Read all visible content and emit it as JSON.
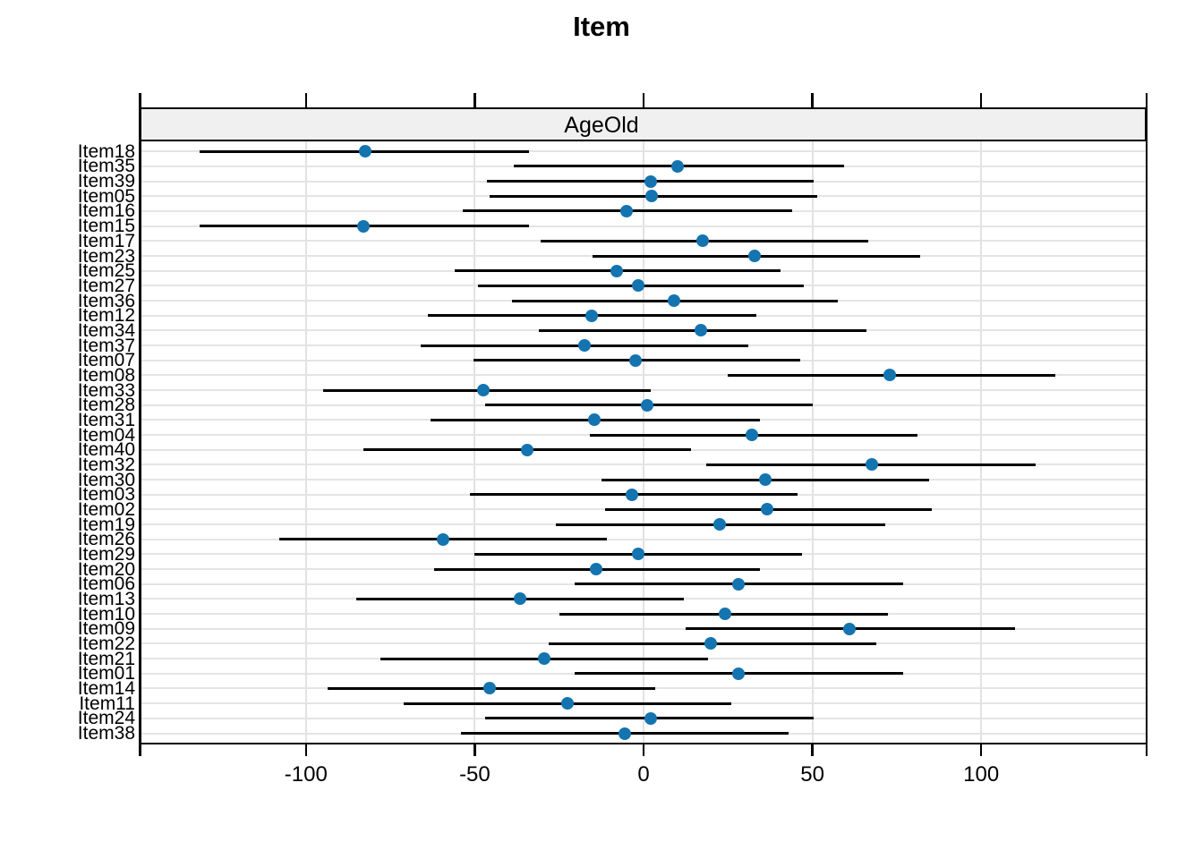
{
  "title": "Item",
  "panel": {
    "strip_label": "AgeOld"
  },
  "colors": {
    "dot": "#1474b0",
    "interval_line": "#000000",
    "grid": "#e4e4e4",
    "strip_fill": "#f0f0f0",
    "frame": "#000000",
    "background": "#ffffff"
  },
  "chart_data": {
    "type": "scatter",
    "subtype": "dotplot-with-error-bars",
    "title": "Item",
    "panel_label": "AgeOld",
    "xlabel": "",
    "ylabel": "",
    "xlim": [
      -149,
      149
    ],
    "x_ticks": [
      -100,
      -50,
      0,
      50,
      100
    ],
    "x_tick_labels": [
      "-100",
      "-50",
      "0",
      "50",
      "100"
    ],
    "grid": true,
    "legend": "none",
    "items": [
      {
        "label": "Item18",
        "estimate": -82.5,
        "lower": -131.5,
        "upper": -34
      },
      {
        "label": "Item35",
        "estimate": 10,
        "lower": -38.5,
        "upper": 59.5
      },
      {
        "label": "Item39",
        "estimate": 2,
        "lower": -46.5,
        "upper": 50.5
      },
      {
        "label": "Item05",
        "estimate": 2.5,
        "lower": -45.5,
        "upper": 51.5
      },
      {
        "label": "Item16",
        "estimate": -5,
        "lower": -53.5,
        "upper": 44
      },
      {
        "label": "Item15",
        "estimate": -83,
        "lower": -131.5,
        "upper": -34
      },
      {
        "label": "Item17",
        "estimate": 17.5,
        "lower": -30.5,
        "upper": 66.5
      },
      {
        "label": "Item23",
        "estimate": 33,
        "lower": -15,
        "upper": 82
      },
      {
        "label": "Item25",
        "estimate": -8,
        "lower": -56,
        "upper": 40.5
      },
      {
        "label": "Item27",
        "estimate": -1.5,
        "lower": -49,
        "upper": 47.5
      },
      {
        "label": "Item36",
        "estimate": 9,
        "lower": -39,
        "upper": 57.5
      },
      {
        "label": "Item12",
        "estimate": -15.5,
        "lower": -64,
        "upper": 33.5
      },
      {
        "label": "Item34",
        "estimate": 17,
        "lower": -31,
        "upper": 66
      },
      {
        "label": "Item37",
        "estimate": -17.5,
        "lower": -66,
        "upper": 31
      },
      {
        "label": "Item07",
        "estimate": -2.5,
        "lower": -50.5,
        "upper": 46.5
      },
      {
        "label": "Item08",
        "estimate": 73,
        "lower": 25,
        "upper": 122
      },
      {
        "label": "Item33",
        "estimate": -47.5,
        "lower": -95,
        "upper": 2
      },
      {
        "label": "Item28",
        "estimate": 1,
        "lower": -47,
        "upper": 50
      },
      {
        "label": "Item31",
        "estimate": -14.5,
        "lower": -63,
        "upper": 34.5
      },
      {
        "label": "Item04",
        "estimate": 32,
        "lower": -16,
        "upper": 81
      },
      {
        "label": "Item40",
        "estimate": -34.5,
        "lower": -83,
        "upper": 14
      },
      {
        "label": "Item32",
        "estimate": 67.5,
        "lower": 18.5,
        "upper": 116
      },
      {
        "label": "Item30",
        "estimate": 36,
        "lower": -12.5,
        "upper": 84.5
      },
      {
        "label": "Item03",
        "estimate": -3.5,
        "lower": -51.5,
        "upper": 45.5
      },
      {
        "label": "Item02",
        "estimate": 36.5,
        "lower": -11.5,
        "upper": 85.5
      },
      {
        "label": "Item19",
        "estimate": 22.5,
        "lower": -26,
        "upper": 71.5
      },
      {
        "label": "Item26",
        "estimate": -59.5,
        "lower": -108,
        "upper": -11
      },
      {
        "label": "Item29",
        "estimate": -1.5,
        "lower": -50,
        "upper": 47
      },
      {
        "label": "Item20",
        "estimate": -14,
        "lower": -62,
        "upper": 34.5
      },
      {
        "label": "Item06",
        "estimate": 28,
        "lower": -20.5,
        "upper": 77
      },
      {
        "label": "Item13",
        "estimate": -36.5,
        "lower": -85,
        "upper": 12
      },
      {
        "label": "Item10",
        "estimate": 24,
        "lower": -25,
        "upper": 72.5
      },
      {
        "label": "Item09",
        "estimate": 61,
        "lower": 12.5,
        "upper": 110
      },
      {
        "label": "Item22",
        "estimate": 20,
        "lower": -28,
        "upper": 69
      },
      {
        "label": "Item21",
        "estimate": -29.5,
        "lower": -78,
        "upper": 19
      },
      {
        "label": "Item01",
        "estimate": 28,
        "lower": -20.5,
        "upper": 77
      },
      {
        "label": "Item14",
        "estimate": -45.5,
        "lower": -93.5,
        "upper": 3.5
      },
      {
        "label": "Item11",
        "estimate": -22.5,
        "lower": -71,
        "upper": 26
      },
      {
        "label": "Item24",
        "estimate": 2,
        "lower": -47,
        "upper": 50.5
      },
      {
        "label": "Item38",
        "estimate": -5.5,
        "lower": -54,
        "upper": 43
      }
    ]
  }
}
